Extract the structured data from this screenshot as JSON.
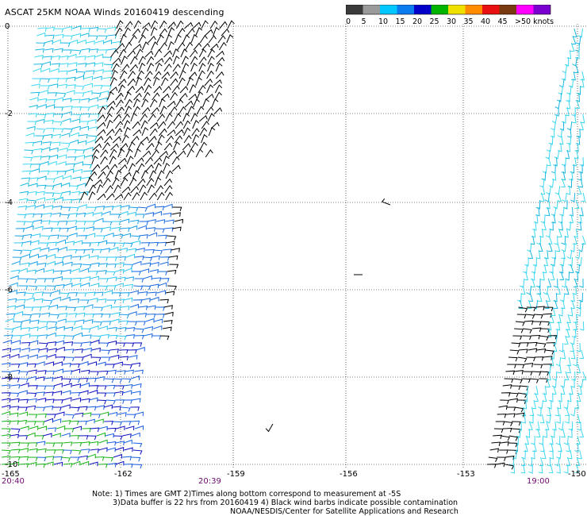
{
  "title": "ASCAT 25KM NOAA Winds 20160419 descending",
  "legend": {
    "labels": [
      "0",
      "5",
      "10",
      "15",
      "20",
      "25",
      "30",
      "35",
      "40",
      "45",
      ">50 knots"
    ],
    "colors": [
      "#3a3a3a",
      "#9a9a9a",
      "#00c8ff",
      "#0a7cf0",
      "#0000c8",
      "#00b400",
      "#f0e000",
      "#ff8c00",
      "#e81010",
      "#7a3a10",
      "#ff00ff",
      "#7b00d0"
    ]
  },
  "axes": {
    "x_labels": [
      "-165",
      "-162",
      "-159",
      "-156",
      "-153",
      "-150"
    ],
    "y_labels": [
      "0",
      "-2",
      "-4",
      "-6",
      "-8",
      "-10"
    ]
  },
  "times": [
    "20:40",
    "20:39",
    "19:00"
  ],
  "notes": {
    "line1": "Note: 1) Times are GMT 2)Times along bottom correspond to measurement at -5S",
    "line2": "3)Data buffer is 22 hrs from 20160419 4) Black wind barbs indicate possible contamination",
    "line3": "NOAA/NESDIS/Center for Satellite Applications and Research"
  }
}
